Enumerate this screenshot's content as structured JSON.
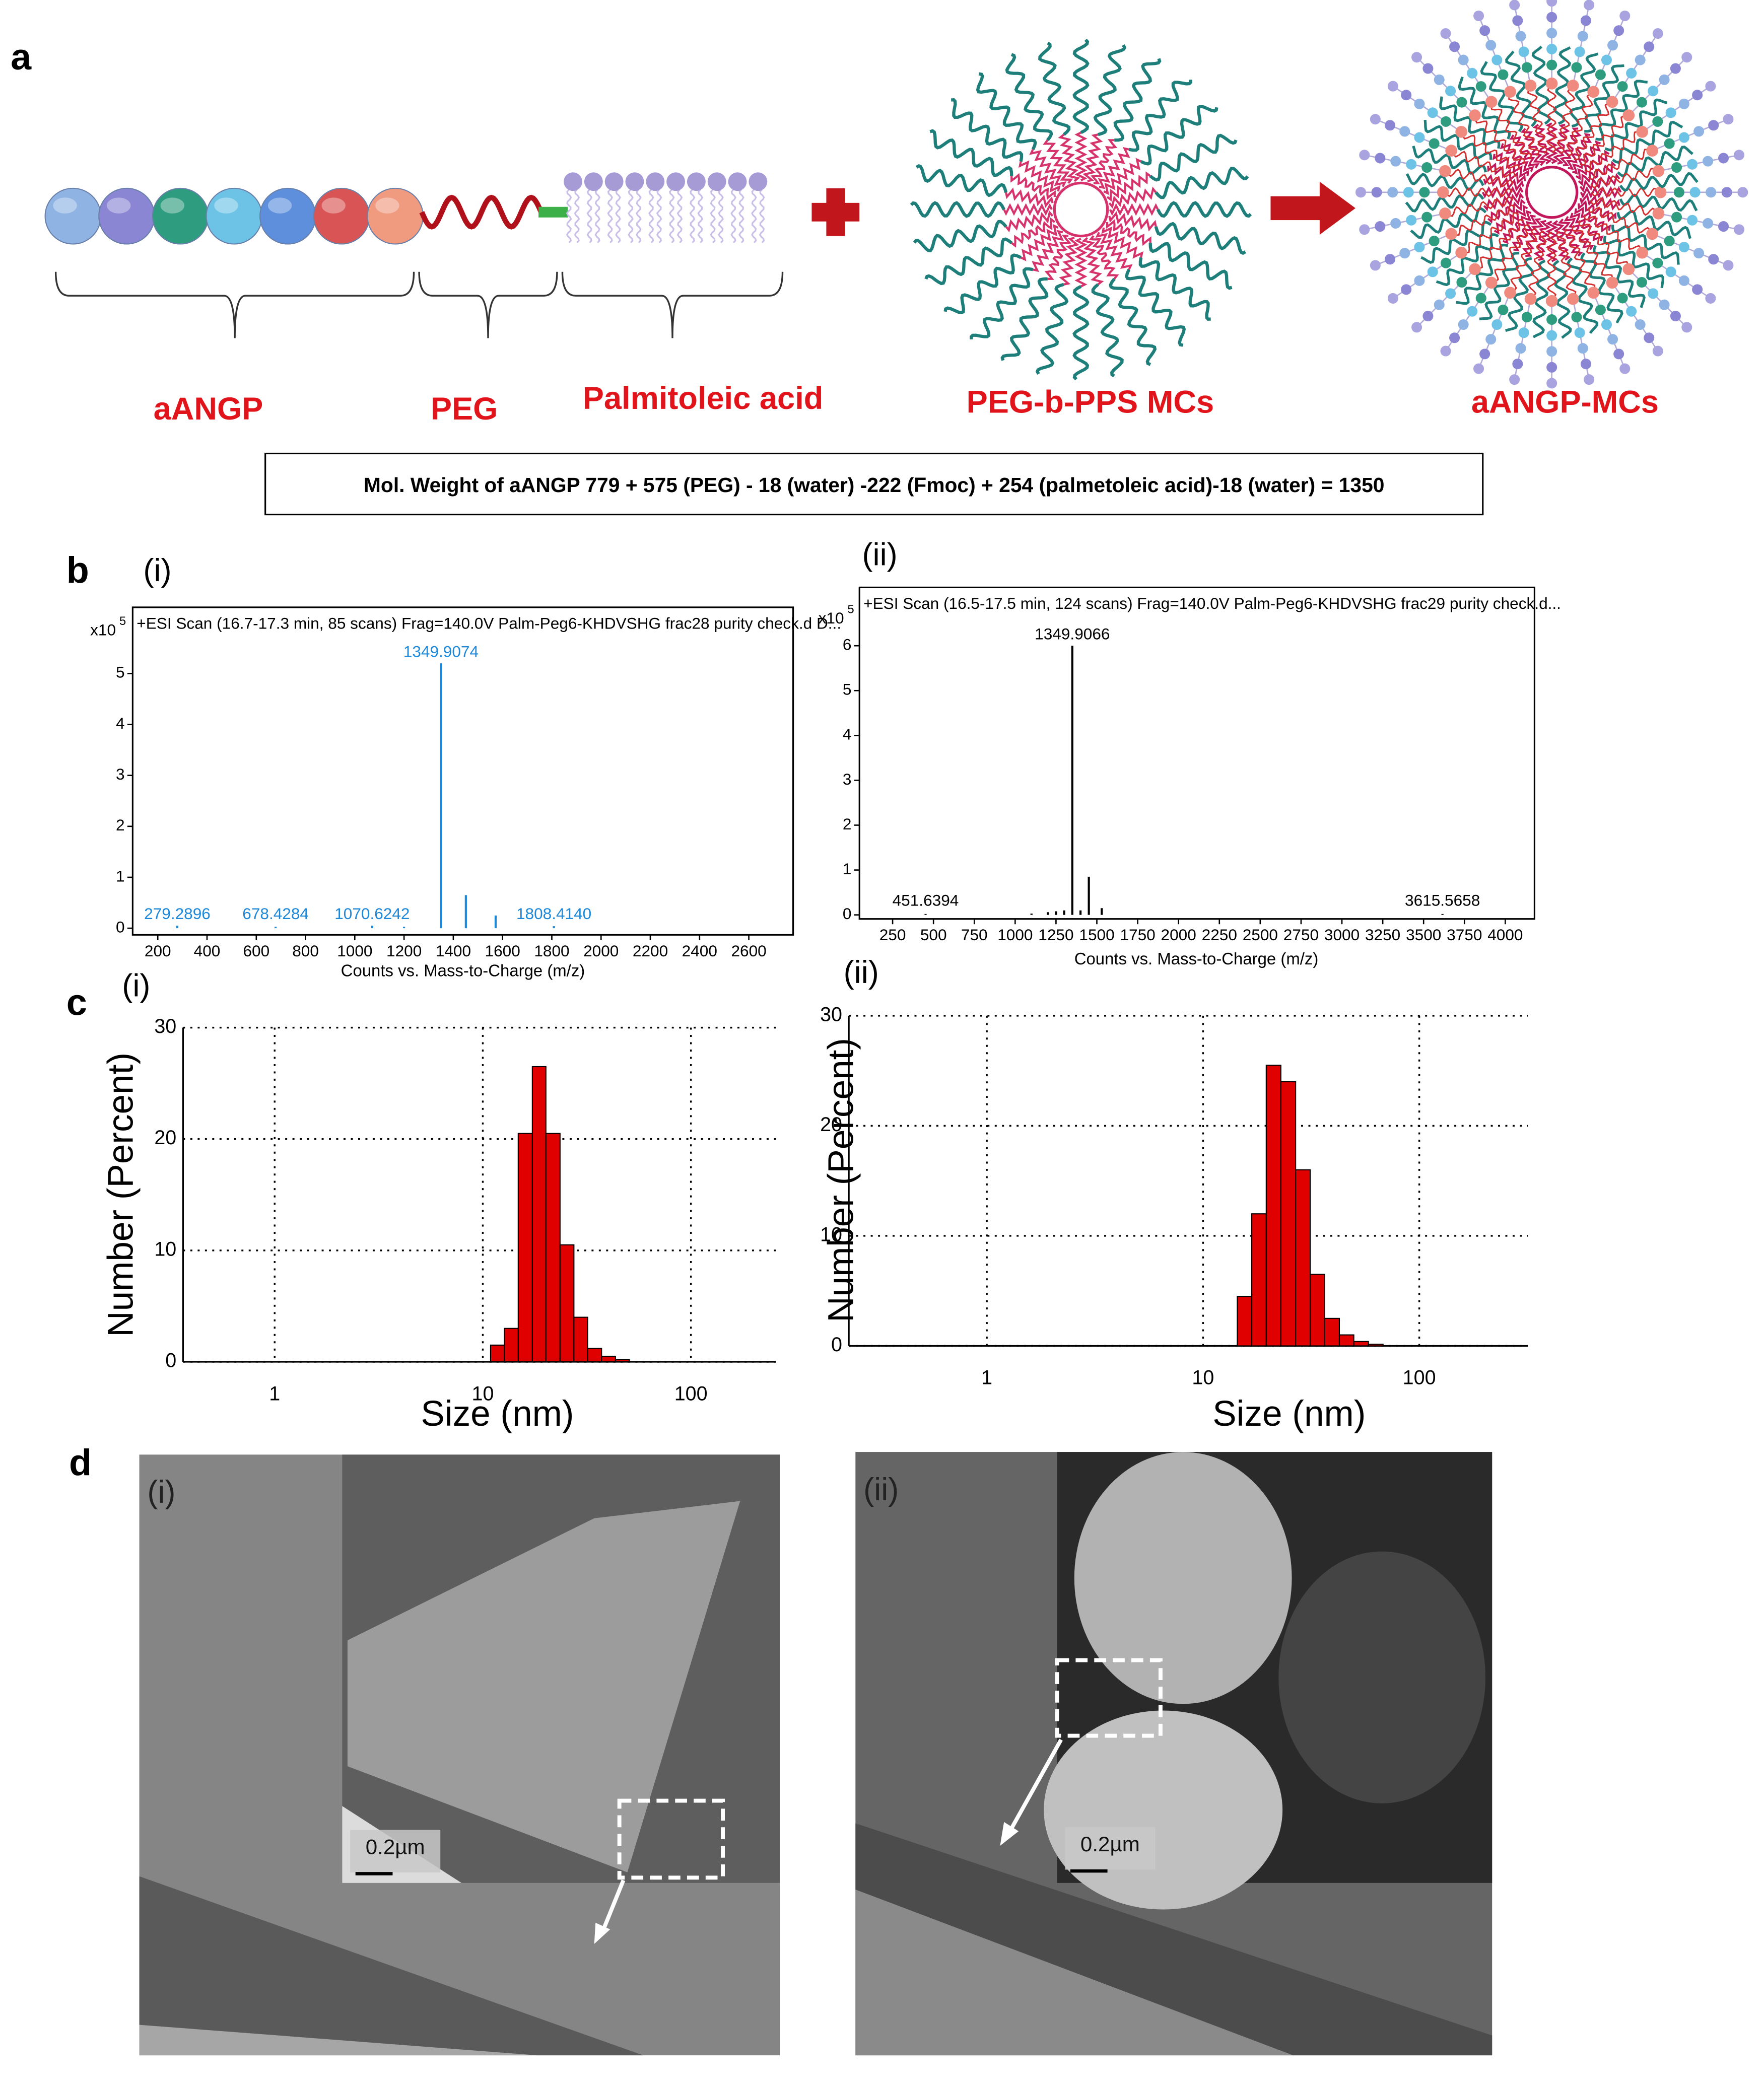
{
  "panel_a": {
    "letter": "a",
    "aangp": "aANGP",
    "peg": "PEG",
    "palmitoleic": "Palmitoleic acid",
    "micelles": "PEG-b-PPS MCs",
    "loaded": "aANGP-MCs",
    "formula": "Mol. Weight of aANGP 779 + 575 (PEG) - 18 (water) -222 (Fmoc) + 254 (palmetoleic acid)-18 (water) = 1350"
  },
  "panel_b": {
    "letter": "b"
  },
  "panel_c": {
    "letter": "c"
  },
  "panel_d": {
    "letter": "d",
    "images": [
      {
        "sublabel": "(i)",
        "scale_bar": "0.2µm"
      },
      {
        "sublabel": "(ii)",
        "scale_bar": "0.2µm"
      }
    ]
  },
  "chart_data": [
    {
      "type": "spectrum",
      "sublabel": "(i)",
      "title": "+ESI Scan (16.7-17.3 min, 85 scans) Frag=140.0V Palm-Peg6-KHDVSHG frac28 purity check.d  D...",
      "y_multiplier": "x10",
      "y_exponent": "5",
      "xlabel": "Counts vs. Mass-to-Charge (m/z)",
      "color": "#1e88d8",
      "x": [
        279.2896,
        678.4284,
        1070.6242,
        1200,
        1349.9074,
        1451,
        1572,
        1808.414
      ],
      "values": [
        0.05,
        0.03,
        0.05,
        0.03,
        5.2,
        0.65,
        0.25,
        0.04
      ],
      "x_labels": [
        "279.2896",
        "678.4284",
        "1070.6242",
        null,
        "1349.9074",
        null,
        null,
        "1808.4140"
      ],
      "xlim": [
        98,
        2780
      ],
      "ylim": [
        -0.13,
        6.3
      ],
      "xticks": [
        200,
        400,
        600,
        800,
        1000,
        1200,
        1400,
        1600,
        1800,
        2000,
        2200,
        2400,
        2600
      ],
      "yticks": [
        0,
        1,
        2,
        3,
        4,
        5
      ]
    },
    {
      "type": "spectrum",
      "sublabel": "(ii)",
      "title": "+ESI Scan (16.5-17.5 min, 124 scans) Frag=140.0V Palm-Peg6-KHDVSHG frac29 purity check.d...",
      "y_multiplier": "x10",
      "y_exponent": "5",
      "xlabel": "Counts vs. Mass-to-Charge (m/z)",
      "color": "#000000",
      "x": [
        451.6394,
        1100,
        1200,
        1250,
        1300,
        1349.9066,
        1400,
        1451,
        1530,
        3615.5658
      ],
      "values": [
        0.02,
        0.03,
        0.06,
        0.08,
        0.1,
        6.0,
        0.1,
        0.85,
        0.15,
        0.02
      ],
      "x_labels": [
        "451.6394",
        null,
        null,
        null,
        null,
        "1349.9066",
        null,
        null,
        null,
        "3615.5658"
      ],
      "xlim": [
        47,
        4179
      ],
      "ylim": [
        -0.09,
        7.3
      ],
      "xticks": [
        250,
        500,
        750,
        1000,
        1250,
        1500,
        1750,
        2000,
        2250,
        2500,
        2750,
        3000,
        3250,
        3500,
        3750,
        4000
      ],
      "yticks": [
        0,
        1,
        2,
        3,
        4,
        5,
        6
      ]
    },
    {
      "type": "histogram",
      "sublabel": "(i)",
      "xlabel": "Size (nm)",
      "ylabel": "Number (Percent)",
      "color": "#e00000",
      "xscale": "log",
      "grid": true,
      "bins": [
        10.9,
        12.7,
        14.8,
        17.3,
        20.1,
        23.5,
        27.4,
        31.9,
        37.2,
        43.4,
        50.6
      ],
      "values": [
        1.5,
        3,
        20.5,
        26.5,
        20.5,
        10.5,
        4,
        1.2,
        0.5,
        0.2
      ],
      "xlim": [
        0.363,
        256
      ],
      "ylim": [
        0,
        30
      ],
      "xticks": [
        1,
        10,
        100
      ],
      "yticks": [
        0,
        10,
        20,
        30
      ]
    },
    {
      "type": "histogram",
      "sublabel": "(ii)",
      "xlabel": "Size (nm)",
      "ylabel": "Number (Percent)",
      "color": "#e00000",
      "xscale": "log",
      "grid": true,
      "bins": [
        14.4,
        16.8,
        19.6,
        22.9,
        26.8,
        31.3,
        36.5,
        42.7,
        49.8,
        58.2,
        68
      ],
      "values": [
        4.5,
        12,
        25.5,
        24,
        16,
        6.5,
        2.5,
        1,
        0.4,
        0.15
      ],
      "xlim": [
        0.23,
        318
      ],
      "ylim": [
        0,
        30
      ],
      "xticks": [
        1,
        10,
        100
      ],
      "yticks": [
        0,
        10,
        20,
        30
      ]
    }
  ]
}
